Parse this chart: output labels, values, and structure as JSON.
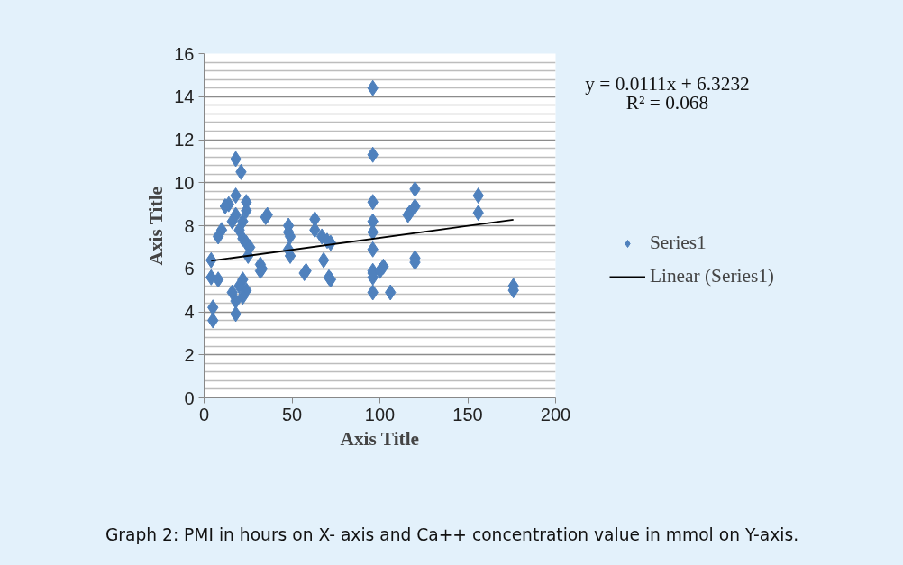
{
  "chart_data": {
    "type": "scatter",
    "xlabel": "Axis Title",
    "ylabel": "Axis Title",
    "xlim": [
      0,
      200
    ],
    "xticks": [
      0,
      50,
      100,
      150,
      200
    ],
    "ylim": [
      0,
      16
    ],
    "yticks": [
      0,
      2,
      4,
      6,
      8,
      10,
      12,
      14,
      16
    ],
    "grid": "y",
    "legend": "right",
    "annotations": [
      "y = 0.0111x + 6.3232",
      "R² = 0.068",
      "Graph 2: PMI in hours on X- axis and Ca++ concentration value in mmol on Y-axis."
    ],
    "series": [
      {
        "name": "Series1",
        "marker": "diamond",
        "color": "#4f81bd",
        "x": [
          96,
          96,
          96,
          96,
          96,
          96,
          96,
          96,
          96,
          96,
          102,
          100,
          106,
          120,
          120,
          117,
          116,
          120,
          120,
          156,
          156,
          176,
          176,
          48,
          48,
          49,
          48,
          49,
          63,
          63,
          67,
          68,
          70,
          72,
          71,
          72,
          58,
          57,
          36,
          35,
          32,
          32,
          33,
          18,
          21,
          18,
          14,
          12,
          24,
          24,
          10,
          8,
          4,
          4,
          8,
          16,
          18,
          20,
          22,
          24,
          26,
          25,
          22,
          20,
          24,
          22,
          18,
          18,
          5,
          5,
          16,
          22
        ],
        "values": [
          14.4,
          11.3,
          9.1,
          8.2,
          7.7,
          6.9,
          5.9,
          5.6,
          5.8,
          4.9,
          6.1,
          5.9,
          4.9,
          9.7,
          8.9,
          8.6,
          8.5,
          6.5,
          6.3,
          9.4,
          8.6,
          5.2,
          5.0,
          8.0,
          7.7,
          7.5,
          6.9,
          6.6,
          8.3,
          7.8,
          7.5,
          6.4,
          7.3,
          7.2,
          5.6,
          5.5,
          5.9,
          5.8,
          8.5,
          8.4,
          6.2,
          5.9,
          6.0,
          11.1,
          10.5,
          9.4,
          9.0,
          8.9,
          9.1,
          8.7,
          7.8,
          7.5,
          6.4,
          5.6,
          5.5,
          8.2,
          8.5,
          7.8,
          7.4,
          7.2,
          7.0,
          6.6,
          5.5,
          5.2,
          5.0,
          4.7,
          4.5,
          3.9,
          4.2,
          3.6,
          4.9,
          8.2
        ]
      },
      {
        "name": "Linear (Series1)",
        "type": "line",
        "marker": "none",
        "line_style": "solid",
        "color": "#000000",
        "x": [
          4,
          176
        ],
        "values": [
          6.37,
          8.28
        ]
      }
    ]
  }
}
